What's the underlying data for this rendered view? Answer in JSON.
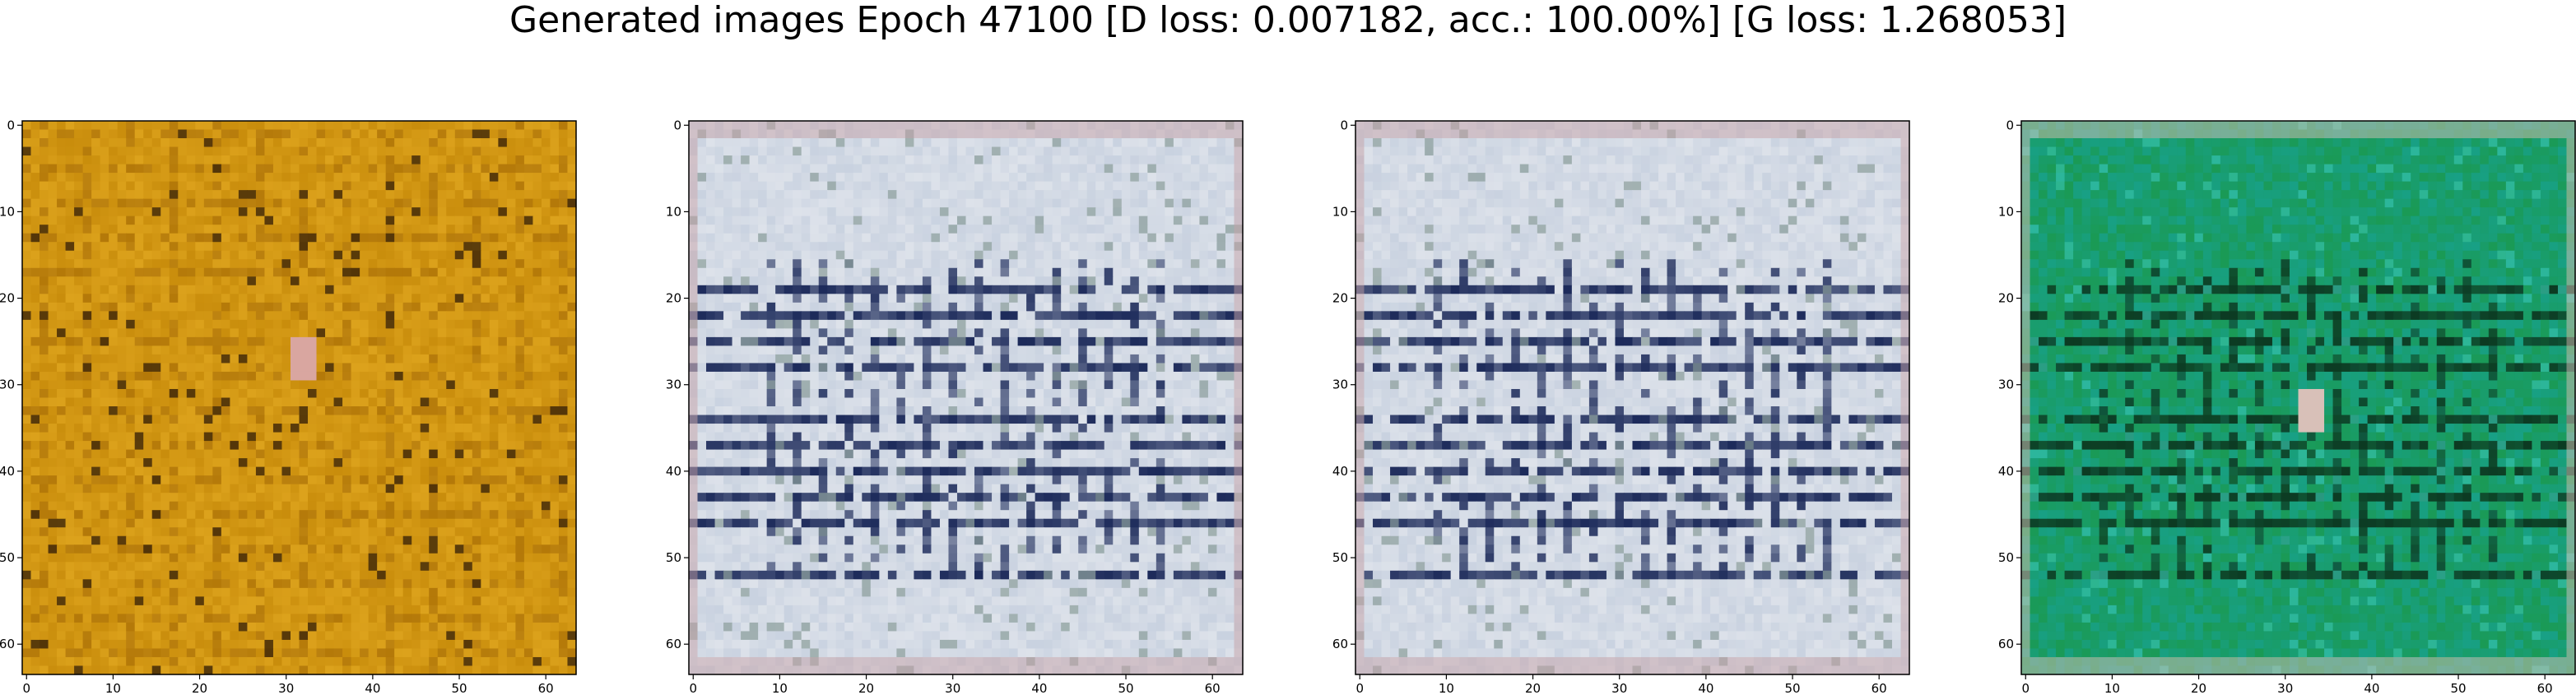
{
  "figure": {
    "title": "Generated images Epoch 47100 [D loss: 0.007182, acc.: 100.00%] [G loss: 1.268053]"
  },
  "chart_data": [
    {
      "type": "heatmap",
      "panel": 1,
      "content": "generated image",
      "dominant_colors": [
        "#c98d0c",
        "#dca21c",
        "#9e6405",
        "#3b2408",
        "#d9a6a0"
      ],
      "x_ticks": [
        0,
        10,
        20,
        30,
        40,
        50,
        60
      ],
      "y_ticks": [
        0,
        10,
        20,
        30,
        40,
        50,
        60
      ],
      "xlim": [
        0,
        63
      ],
      "ylim": [
        63,
        0
      ]
    },
    {
      "type": "heatmap",
      "panel": 2,
      "content": "generated image",
      "dominant_colors": [
        "#dde2ea",
        "#c9d2e0",
        "#1c2a5a",
        "#8a9d9a",
        "#c7a3a8"
      ],
      "x_ticks": [
        0,
        10,
        20,
        30,
        40,
        50,
        60
      ],
      "y_ticks": [
        0,
        10,
        20,
        30,
        40,
        50,
        60
      ],
      "xlim": [
        0,
        63
      ],
      "ylim": [
        63,
        0
      ]
    },
    {
      "type": "heatmap",
      "panel": 3,
      "content": "generated image",
      "dominant_colors": [
        "#dde2ea",
        "#c9d2e0",
        "#1c2a5a",
        "#8a9d9a",
        "#c7a3a8"
      ],
      "x_ticks": [
        0,
        10,
        20,
        30,
        40,
        50,
        60
      ],
      "y_ticks": [
        0,
        10,
        20,
        30,
        40,
        50,
        60
      ],
      "xlim": [
        0,
        63
      ],
      "ylim": [
        63,
        0
      ]
    },
    {
      "type": "heatmap",
      "panel": 4,
      "content": "generated image",
      "dominant_colors": [
        "#1a9a55",
        "#18a085",
        "#0c3a22",
        "#35c0a8",
        "#d8c0b8"
      ],
      "x_ticks": [
        0,
        10,
        20,
        30,
        40,
        50,
        60
      ],
      "y_ticks": [
        0,
        10,
        20,
        30,
        40,
        50,
        60
      ],
      "xlim": [
        0,
        63
      ],
      "ylim": [
        63,
        0
      ]
    }
  ]
}
